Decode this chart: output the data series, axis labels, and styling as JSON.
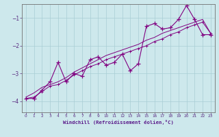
{
  "xlabel": "Windchill (Refroidissement éolien,°C)",
  "bg_color": "#cde8ec",
  "line_color": "#800080",
  "grid_color": "#a8cdd4",
  "x_data": [
    0,
    1,
    2,
    3,
    4,
    5,
    6,
    7,
    8,
    9,
    10,
    11,
    12,
    13,
    14,
    15,
    16,
    17,
    18,
    19,
    20,
    21,
    22,
    23
  ],
  "y_zigzag": [
    -3.9,
    -3.9,
    -3.6,
    -3.3,
    -2.6,
    -3.3,
    -3.0,
    -3.1,
    -2.5,
    -2.4,
    -2.7,
    -2.6,
    -2.3,
    -2.9,
    -2.65,
    -1.3,
    -1.2,
    -1.4,
    -1.35,
    -1.05,
    -0.55,
    -1.05,
    -1.6,
    -1.6
  ],
  "y_line1": [
    -3.9,
    -3.85,
    -3.65,
    -3.45,
    -3.4,
    -3.25,
    -3.05,
    -2.9,
    -2.75,
    -2.65,
    -2.5,
    -2.4,
    -2.3,
    -2.2,
    -2.1,
    -2.0,
    -1.85,
    -1.75,
    -1.6,
    -1.5,
    -1.35,
    -1.25,
    -1.15,
    -1.55
  ],
  "y_line2": [
    -3.85,
    -3.7,
    -3.5,
    -3.4,
    -3.3,
    -3.15,
    -2.95,
    -2.8,
    -2.65,
    -2.5,
    -2.35,
    -2.25,
    -2.15,
    -2.05,
    -1.95,
    -1.8,
    -1.7,
    -1.55,
    -1.45,
    -1.35,
    -1.25,
    -1.15,
    -1.05,
    -1.55
  ],
  "ylim": [
    -4.4,
    -0.5
  ],
  "xlim": [
    -0.5,
    23.5
  ],
  "yticks": [
    -4,
    -3,
    -2,
    -1
  ],
  "xticks": [
    0,
    1,
    2,
    3,
    4,
    5,
    6,
    7,
    8,
    9,
    10,
    11,
    12,
    13,
    14,
    15,
    16,
    17,
    18,
    19,
    20,
    21,
    22,
    23
  ],
  "tick_color": "#5a2d82",
  "label_color": "#5a1a8a",
  "spine_color": "#707070"
}
